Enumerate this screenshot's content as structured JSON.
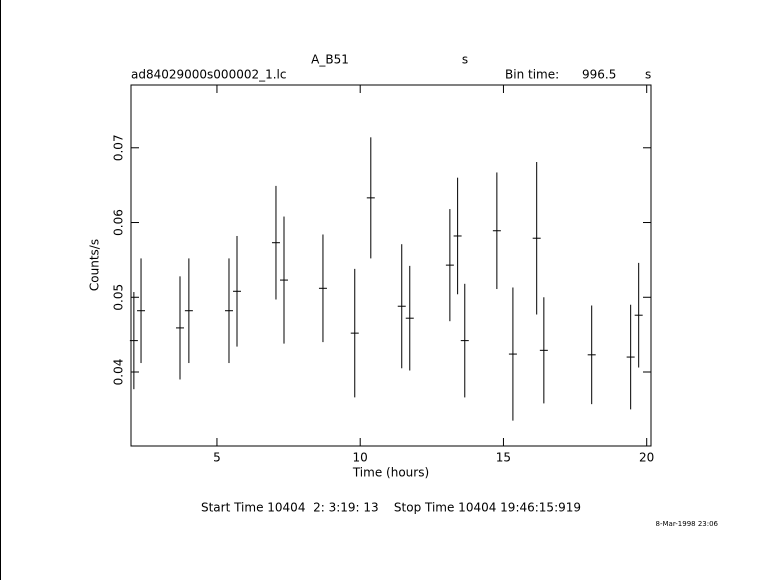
{
  "chart_data": {
    "type": "errorbar",
    "title": "A_B51",
    "title_unit": "s",
    "file_name": "ad84029000s000002_1.lc",
    "bin_time_label": "Bin time:",
    "bin_time": 996.5,
    "bin_time_unit": "s",
    "x_label": "Time (hours)",
    "y_label": "Counts/s",
    "footer": "Start Time 10404  2: 3:19: 13    Stop Time 10404 19:46:15:919",
    "date_stamp": "8-Mar-1998 23:06",
    "color": "#000000",
    "xlim": [
      2.0,
      20.15
    ],
    "xticks": [
      5,
      10,
      15,
      20
    ],
    "ylim": [
      0.0301,
      0.0784
    ],
    "yticks": [
      0.04,
      0.05,
      0.06,
      0.07
    ],
    "x": [
      2.1,
      2.35,
      3.71,
      4.02,
      5.42,
      5.7,
      7.06,
      7.34,
      8.7,
      9.81,
      10.37,
      11.45,
      11.73,
      13.13,
      13.4,
      13.65,
      14.77,
      15.33,
      16.16,
      16.41,
      18.08,
      19.44,
      19.72
    ],
    "values": [
      0.0442,
      0.0482,
      0.0459,
      0.0482,
      0.0482,
      0.0508,
      0.0573,
      0.0523,
      0.0512,
      0.0452,
      0.0633,
      0.0488,
      0.0472,
      0.0543,
      0.0582,
      0.0442,
      0.0589,
      0.0424,
      0.0579,
      0.0429,
      0.0423,
      0.042,
      0.0476
    ],
    "errors": [
      0.0065,
      0.007,
      0.0069,
      0.007,
      0.007,
      0.0074,
      0.0076,
      0.0085,
      0.0072,
      0.0086,
      0.0081,
      0.0083,
      0.007,
      0.0075,
      0.0078,
      0.0076,
      0.0078,
      0.0089,
      0.0102,
      0.0071,
      0.0066,
      0.007,
      0.007
    ]
  }
}
